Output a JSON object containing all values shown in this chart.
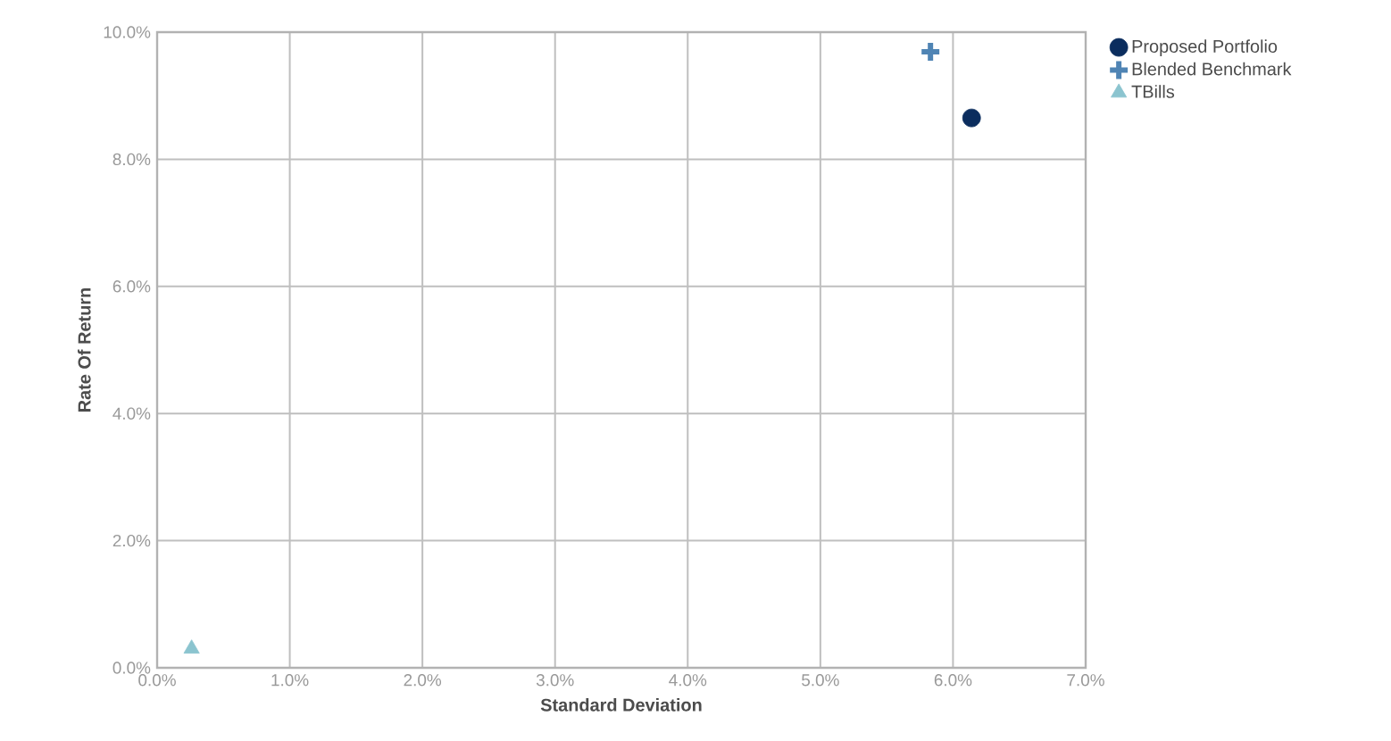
{
  "chart_data": {
    "type": "scatter",
    "xlabel": "Standard Deviation",
    "ylabel": "Rate Of Return",
    "xlim": [
      0,
      7
    ],
    "ylim": [
      0,
      10
    ],
    "xticks": [
      {
        "value": 0,
        "label": "0.0%"
      },
      {
        "value": 1,
        "label": "1.0%"
      },
      {
        "value": 2,
        "label": "2.0%"
      },
      {
        "value": 3,
        "label": "3.0%"
      },
      {
        "value": 4,
        "label": "4.0%"
      },
      {
        "value": 5,
        "label": "5.0%"
      },
      {
        "value": 6,
        "label": "6.0%"
      },
      {
        "value": 7,
        "label": "7.0%"
      }
    ],
    "yticks": [
      {
        "value": 0,
        "label": "0.0%"
      },
      {
        "value": 2,
        "label": "2.0%"
      },
      {
        "value": 4,
        "label": "4.0%"
      },
      {
        "value": 6,
        "label": "6.0%"
      },
      {
        "value": 8,
        "label": "8.0%"
      },
      {
        "value": 10,
        "label": "10.0%"
      }
    ],
    "grid": true,
    "legend": "top right",
    "series": [
      {
        "name": "Proposed Portfolio",
        "color": "#0b2d5e",
        "marker": "circle",
        "x": [
          6.14
        ],
        "values": [
          8.65
        ]
      },
      {
        "name": "Blended Benchmark",
        "color": "#4f84b4",
        "marker": "cross",
        "x": [
          5.83
        ],
        "values": [
          9.69
        ]
      },
      {
        "name": "TBills",
        "color": "#8bc4cf",
        "marker": "triangle",
        "x": [
          0.26
        ],
        "values": [
          0.3
        ]
      }
    ]
  }
}
